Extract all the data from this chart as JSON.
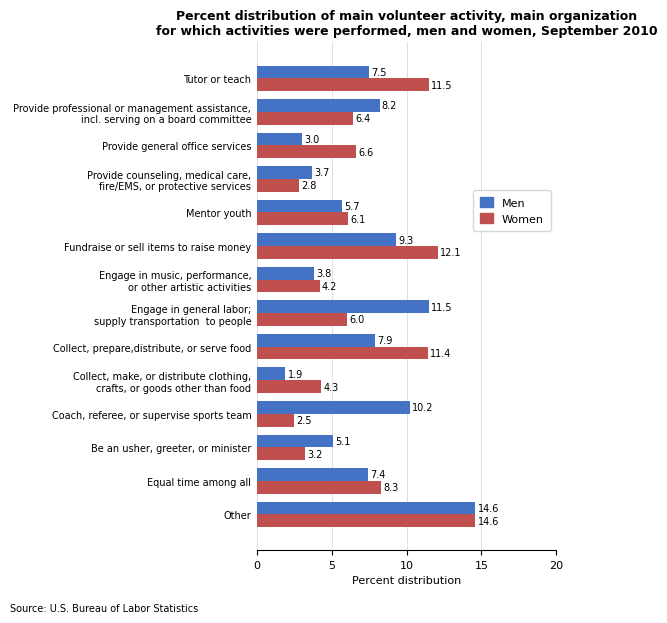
{
  "title": "Percent distribution of main volunteer activity, main organization\nfor which activities were performed, men and women, September 2010",
  "categories": [
    "Tutor or teach",
    "Provide professional or management assistance,\nincl. serving on a board committee",
    "Provide general office services",
    "Provide counseling, medical care,\nfire/EMS, or protective services",
    "Mentor youth",
    "Fundraise or sell items to raise money",
    "Engage in music, performance,\nor other artistic activities",
    "Engage in general labor;\nsupply transportation  to people",
    "Collect, prepare,distribute, or serve food",
    "Collect, make, or distribute clothing,\ncrafts, or goods other than food",
    "Coach, referee, or supervise sports team",
    "Be an usher, greeter, or minister",
    "Equal time among all",
    "Other"
  ],
  "men": [
    7.5,
    8.2,
    3.0,
    3.7,
    5.7,
    9.3,
    3.8,
    11.5,
    7.9,
    1.9,
    10.2,
    5.1,
    7.4,
    14.6
  ],
  "women": [
    11.5,
    6.4,
    6.6,
    2.8,
    6.1,
    12.1,
    4.2,
    6.0,
    11.4,
    4.3,
    2.5,
    3.2,
    8.3,
    14.6
  ],
  "men_color": "#4472C4",
  "women_color": "#C0504D",
  "xlabel": "Percent distribution",
  "source": "Source: U.S. Bureau of Labor Statistics",
  "xlim": [
    0,
    20
  ],
  "xticks": [
    0,
    5,
    10,
    15,
    20
  ]
}
